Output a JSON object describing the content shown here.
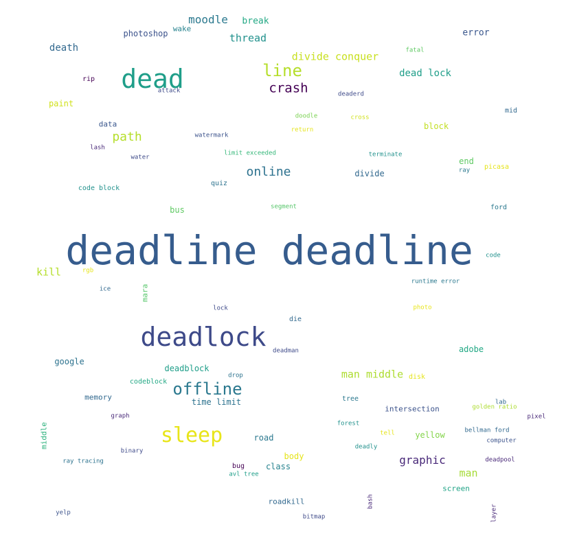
{
  "words": [
    {
      "text": "deadline deadline",
      "color": "#365c8d"
    },
    {
      "text": "deadlock",
      "color": "#3e4a89"
    },
    {
      "text": "dead",
      "color": "#1f9e89"
    },
    {
      "text": "sleep",
      "color": "#e8e51a"
    },
    {
      "text": "offline",
      "color": "#2a788e"
    },
    {
      "text": "line",
      "color": "#b5de2b"
    },
    {
      "text": "crash",
      "color": "#440154"
    },
    {
      "text": "online",
      "color": "#2c718e"
    },
    {
      "text": "path",
      "color": "#b5de2b"
    },
    {
      "text": "moodle",
      "color": "#2a788e"
    },
    {
      "text": "thread",
      "color": "#21918c"
    },
    {
      "text": "divide conquer",
      "color": "#c8e020"
    },
    {
      "text": "dead lock",
      "color": "#1f9e89"
    },
    {
      "text": "man middle",
      "color": "#addc30"
    },
    {
      "text": "graphic",
      "color": "#482878"
    },
    {
      "text": "man",
      "color": "#a5db36"
    },
    {
      "text": "kill",
      "color": "#b5de2b"
    },
    {
      "text": "death",
      "color": "#31688e"
    },
    {
      "text": "photoshop",
      "color": "#3b528b"
    },
    {
      "text": "break",
      "color": "#22a884"
    },
    {
      "text": "wake",
      "color": "#26828e"
    },
    {
      "text": "error",
      "color": "#39568c"
    },
    {
      "text": "time limit",
      "color": "#2c728e"
    },
    {
      "text": "deadblock",
      "color": "#1f9e89"
    },
    {
      "text": "yellow",
      "color": "#84d44b"
    },
    {
      "text": "intersection",
      "color": "#3b528b"
    },
    {
      "text": "road",
      "color": "#2a788e"
    },
    {
      "text": "class",
      "color": "#26828e"
    },
    {
      "text": "body",
      "color": "#e5e419"
    },
    {
      "text": "screen",
      "color": "#20a386"
    },
    {
      "text": "roadkill",
      "color": "#31688e"
    },
    {
      "text": "google",
      "color": "#2c728e"
    },
    {
      "text": "memory",
      "color": "#31688e"
    },
    {
      "text": "adobe",
      "color": "#22a884"
    },
    {
      "text": "paint",
      "color": "#d0e11c"
    },
    {
      "text": "data",
      "color": "#39568c"
    },
    {
      "text": "block",
      "color": "#c2df23"
    },
    {
      "text": "end",
      "color": "#5ec962"
    },
    {
      "text": "divide",
      "color": "#31688e"
    },
    {
      "text": "bus",
      "color": "#5ec962"
    },
    {
      "text": "mara",
      "color": "#54c568",
      "vertical": true
    },
    {
      "text": "middle",
      "color": "#2db27d",
      "vertical": true
    },
    {
      "text": "tree",
      "color": "#2a788e"
    },
    {
      "text": "rip",
      "color": "#440154"
    },
    {
      "text": "attack",
      "color": "#3e4a89"
    },
    {
      "text": "deaderd",
      "color": "#3e4a89"
    },
    {
      "text": "fatal",
      "color": "#5ec962"
    },
    {
      "text": "mid",
      "color": "#31688e"
    },
    {
      "text": "doodle",
      "color": "#7ad151"
    },
    {
      "text": "cross",
      "color": "#d0e11c"
    },
    {
      "text": "return",
      "color": "#e5e419"
    },
    {
      "text": "watermark",
      "color": "#3b528b"
    },
    {
      "text": "lash",
      "color": "#482878"
    },
    {
      "text": "water",
      "color": "#3e4a89"
    },
    {
      "text": "limit exceeded",
      "color": "#35b779"
    },
    {
      "text": "terminate",
      "color": "#21918c"
    },
    {
      "text": "ray",
      "color": "#2a788e"
    },
    {
      "text": "picasa",
      "color": "#e5e419"
    },
    {
      "text": "code block",
      "color": "#21918c"
    },
    {
      "text": "quiz",
      "color": "#2c728e"
    },
    {
      "text": "segment",
      "color": "#54c568"
    },
    {
      "text": "ford",
      "color": "#2a788e"
    },
    {
      "text": "code",
      "color": "#21918c"
    },
    {
      "text": "rgb",
      "color": "#e5e419"
    },
    {
      "text": "ice",
      "color": "#31688e"
    },
    {
      "text": "runtime error",
      "color": "#2a788e"
    },
    {
      "text": "photo",
      "color": "#e8e51a"
    },
    {
      "text": "lock",
      "color": "#3e4a89"
    },
    {
      "text": "die",
      "color": "#31688e"
    },
    {
      "text": "deadman",
      "color": "#3e4a89"
    },
    {
      "text": "drop",
      "color": "#2c728e"
    },
    {
      "text": "codeblock",
      "color": "#22a884"
    },
    {
      "text": "disk",
      "color": "#e5e419"
    },
    {
      "text": "lab",
      "color": "#31688e"
    },
    {
      "text": "golden ratio",
      "color": "#addc30"
    },
    {
      "text": "pixel",
      "color": "#482878"
    },
    {
      "text": "graph",
      "color": "#482878"
    },
    {
      "text": "forest",
      "color": "#21918c"
    },
    {
      "text": "tell",
      "color": "#e5e419"
    },
    {
      "text": "bellman ford",
      "color": "#31688e"
    },
    {
      "text": "computer",
      "color": "#3b528b"
    },
    {
      "text": "binary",
      "color": "#3e4a89"
    },
    {
      "text": "ray tracing",
      "color": "#2c728e"
    },
    {
      "text": "deadly",
      "color": "#21918c"
    },
    {
      "text": "deadpool",
      "color": "#482878"
    },
    {
      "text": "bug",
      "color": "#440154"
    },
    {
      "text": "avl tree",
      "color": "#1f9e89"
    },
    {
      "text": "bash",
      "color": "#482878",
      "vertical": true
    },
    {
      "text": "layer",
      "color": "#482878",
      "vertical": true
    },
    {
      "text": "yelp",
      "color": "#3b528b"
    },
    {
      "text": "bitmap",
      "color": "#3e4a89"
    }
  ]
}
